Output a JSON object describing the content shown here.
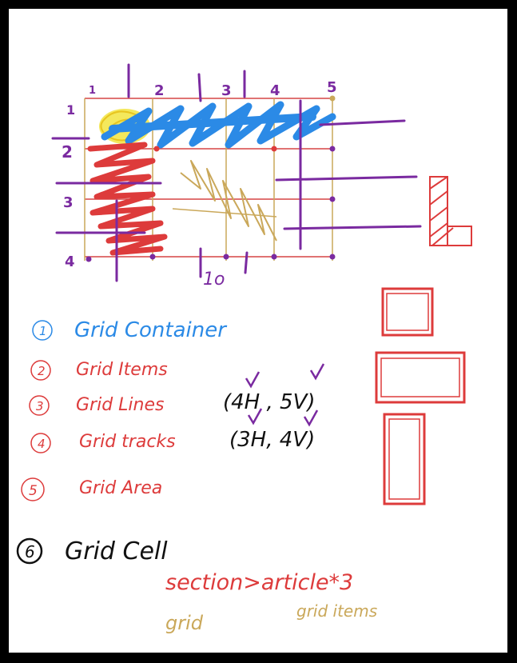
{
  "colors": {
    "grid_line": "#d64545",
    "tan": "#caa85a",
    "purple": "#7a2aa0",
    "blue": "#2b8ae6",
    "yellow": "#f3e64a",
    "red": "#dd3b3b",
    "black": "#111111"
  },
  "column_labels": [
    "1",
    "2",
    "3",
    "4",
    "5"
  ],
  "row_labels": [
    "1",
    "2",
    "3",
    "4"
  ],
  "cell_label": "1o",
  "legend": [
    {
      "number": "1",
      "text": "Grid Container",
      "color": "#2b8ae6"
    },
    {
      "number": "2",
      "text": "Grid Items",
      "color": "#dd3b3b"
    },
    {
      "number": "3",
      "text": "Grid Lines",
      "color": "#dd3b3b",
      "note": "(4H , 5V)"
    },
    {
      "number": "4",
      "text": "Grid tracks",
      "color": "#dd3b3b",
      "note": "(3H, 4V)"
    },
    {
      "number": "5",
      "text": "Grid Area",
      "color": "#dd3b3b"
    },
    {
      "number": "6",
      "text": "Grid Cell",
      "color": "#111111"
    }
  ],
  "emmet": "section>article*3",
  "grid_label": "grid",
  "grid_items_label": "grid items"
}
